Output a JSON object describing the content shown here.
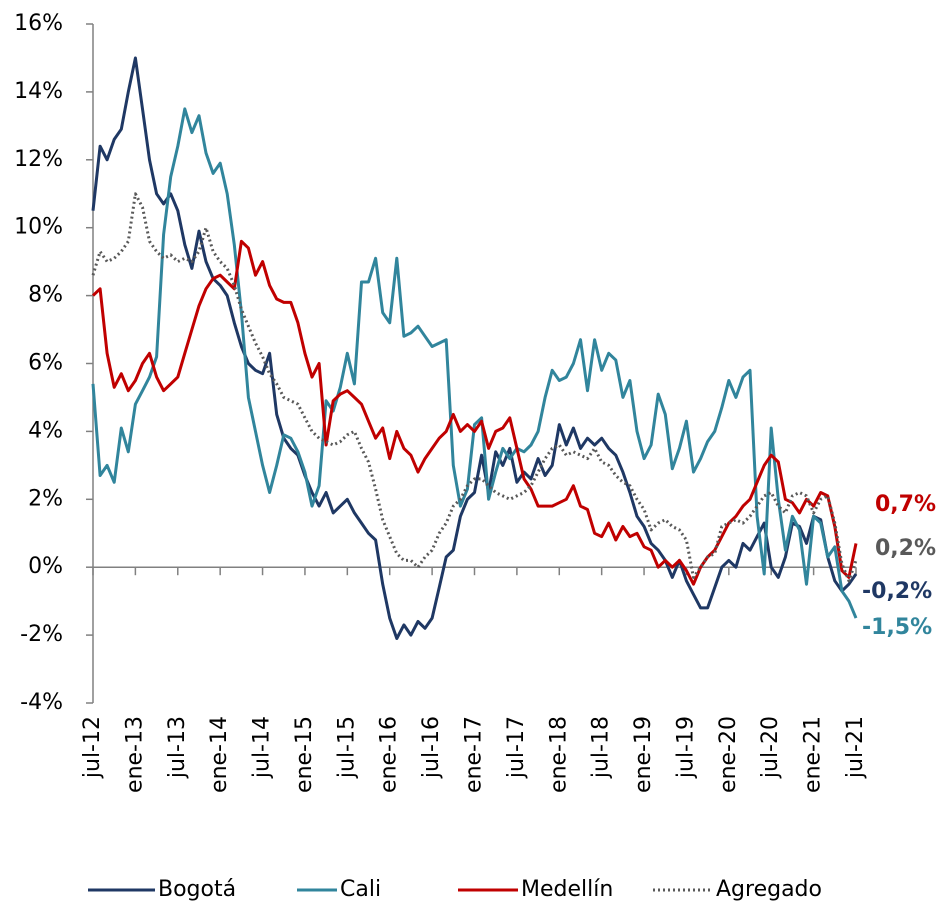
{
  "chart_data": {
    "type": "line",
    "categories": [
      "jul-12",
      null,
      null,
      null,
      null,
      null,
      "ene-13",
      null,
      null,
      null,
      null,
      null,
      "jul-13",
      null,
      null,
      null,
      null,
      null,
      "ene-14",
      null,
      null,
      null,
      null,
      null,
      "jul-14",
      null,
      null,
      null,
      null,
      null,
      "ene-15",
      null,
      null,
      null,
      null,
      null,
      "jul-15",
      null,
      null,
      null,
      null,
      null,
      "ene-16",
      null,
      null,
      null,
      null,
      null,
      "jul-16",
      null,
      null,
      null,
      null,
      null,
      "ene-17",
      null,
      null,
      null,
      null,
      null,
      "jul-17",
      null,
      null,
      null,
      null,
      null,
      "ene-18",
      null,
      null,
      null,
      null,
      null,
      "jul-18",
      null,
      null,
      null,
      null,
      null,
      "ene-19",
      null,
      null,
      null,
      null,
      null,
      "jul-19",
      null,
      null,
      null,
      null,
      null,
      "ene-20",
      null,
      null,
      null,
      null,
      null,
      "jul-20",
      null,
      null,
      null,
      null,
      null,
      "ene-21",
      null,
      null,
      null,
      null,
      null,
      "jul-21"
    ],
    "series": [
      {
        "name": "Bogotá",
        "color": "#1f3864",
        "dash": "solid",
        "values": [
          10.5,
          12.4,
          12.0,
          12.6,
          12.9,
          14.0,
          15.0,
          13.5,
          12.0,
          11.0,
          10.7,
          11.0,
          10.5,
          9.5,
          8.8,
          9.9,
          9.0,
          8.5,
          8.3,
          8.0,
          7.2,
          6.5,
          6.0,
          5.8,
          5.7,
          6.3,
          4.5,
          3.8,
          3.5,
          3.3,
          2.7,
          2.2,
          1.8,
          2.2,
          1.6,
          1.8,
          2.0,
          1.6,
          1.3,
          1.0,
          0.8,
          -0.5,
          -1.5,
          -2.1,
          -1.7,
          -2.0,
          -1.6,
          -1.8,
          -1.5,
          -0.6,
          0.3,
          0.5,
          1.5,
          2.0,
          2.2,
          3.3,
          2.2,
          3.4,
          3.0,
          3.5,
          2.5,
          2.8,
          2.6,
          3.2,
          2.7,
          3.0,
          4.2,
          3.6,
          4.1,
          3.5,
          3.8,
          3.6,
          3.8,
          3.5,
          3.3,
          2.8,
          2.2,
          1.5,
          1.2,
          0.7,
          0.5,
          0.2,
          -0.3,
          0.2,
          -0.4,
          -0.8,
          -1.2,
          -1.2,
          -0.6,
          0.0,
          0.2,
          0.0,
          0.7,
          0.5,
          0.9,
          1.3,
          0.0,
          -0.3,
          0.3,
          1.3,
          1.2,
          0.7,
          1.5,
          1.4,
          0.3,
          -0.4,
          -0.7,
          -0.5,
          -0.2
        ],
        "value_labels": [
          null,
          null,
          null,
          null,
          null,
          null,
          null,
          null,
          null,
          null,
          null,
          null,
          null,
          null,
          null,
          null,
          null,
          null,
          null,
          null,
          null,
          null,
          null,
          null,
          null,
          null,
          null,
          null,
          null,
          null,
          null,
          null,
          null,
          null,
          null,
          null,
          null,
          null,
          null,
          null,
          null,
          null,
          null,
          null,
          null,
          null,
          null,
          null,
          null,
          null,
          null,
          null,
          null,
          null,
          null,
          null,
          null,
          null,
          null,
          null,
          null,
          null,
          null,
          null,
          null,
          null,
          null,
          null,
          null,
          null,
          null,
          null,
          null,
          null,
          null,
          null,
          null,
          null,
          null,
          null,
          null,
          null,
          null,
          null,
          null,
          null,
          null,
          null,
          null,
          null,
          null,
          null,
          null,
          null,
          null,
          null,
          null,
          null,
          null,
          null,
          null,
          null,
          null,
          null,
          null,
          null,
          null,
          null,
          "-0,2%"
        ]
      },
      {
        "name": "Cali",
        "color": "#31859c",
        "dash": "solid",
        "values": [
          5.4,
          2.7,
          3.0,
          2.5,
          4.1,
          3.4,
          4.8,
          5.2,
          5.6,
          6.2,
          9.8,
          11.5,
          12.4,
          13.5,
          12.8,
          13.3,
          12.2,
          11.6,
          11.9,
          11.0,
          9.5,
          7.5,
          5.0,
          4.0,
          3.0,
          2.2,
          3.0,
          3.9,
          3.8,
          3.4,
          2.8,
          1.8,
          2.4,
          4.9,
          4.6,
          5.3,
          6.3,
          5.4,
          8.4,
          8.4,
          9.1,
          7.5,
          7.2,
          9.1,
          6.8,
          6.9,
          7.1,
          6.8,
          6.5,
          6.6,
          6.7,
          3.0,
          1.8,
          2.3,
          4.2,
          4.4,
          2.0,
          2.8,
          3.5,
          3.2,
          3.5,
          3.4,
          3.6,
          4.0,
          5.0,
          5.8,
          5.5,
          5.6,
          6.0,
          6.7,
          5.2,
          6.7,
          5.8,
          6.3,
          6.1,
          5.0,
          5.5,
          4.0,
          3.2,
          3.6,
          5.1,
          4.5,
          2.9,
          3.5,
          4.3,
          2.8,
          3.2,
          3.7,
          4.0,
          4.7,
          5.5,
          5.0,
          5.6,
          5.8,
          1.5,
          -0.2,
          4.1,
          2.0,
          0.5,
          1.5,
          1.1,
          -0.5,
          1.5,
          1.3,
          0.3,
          0.6,
          -0.7,
          -1.0,
          -1.5
        ],
        "value_labels": [
          null,
          null,
          null,
          null,
          null,
          null,
          null,
          null,
          null,
          null,
          null,
          null,
          null,
          null,
          null,
          null,
          null,
          null,
          null,
          null,
          null,
          null,
          null,
          null,
          null,
          null,
          null,
          null,
          null,
          null,
          null,
          null,
          null,
          null,
          null,
          null,
          null,
          null,
          null,
          null,
          null,
          null,
          null,
          null,
          null,
          null,
          null,
          null,
          null,
          null,
          null,
          null,
          null,
          null,
          null,
          null,
          null,
          null,
          null,
          null,
          null,
          null,
          null,
          null,
          null,
          null,
          null,
          null,
          null,
          null,
          null,
          null,
          null,
          null,
          null,
          null,
          null,
          null,
          null,
          null,
          null,
          null,
          null,
          null,
          null,
          null,
          null,
          null,
          null,
          null,
          null,
          null,
          null,
          null,
          null,
          null,
          null,
          null,
          null,
          null,
          null,
          null,
          null,
          null,
          null,
          null,
          null,
          null,
          "-1,5%"
        ]
      },
      {
        "name": "Medellín",
        "color": "#c00000",
        "dash": "solid",
        "values": [
          8.0,
          8.2,
          6.3,
          5.3,
          5.7,
          5.2,
          5.5,
          6.0,
          6.3,
          5.6,
          5.2,
          5.4,
          5.6,
          6.3,
          7.0,
          7.7,
          8.2,
          8.5,
          8.6,
          8.4,
          8.2,
          9.6,
          9.4,
          8.6,
          9.0,
          8.3,
          7.9,
          7.8,
          7.8,
          7.2,
          6.3,
          5.6,
          6.0,
          3.6,
          4.9,
          5.1,
          5.2,
          5.0,
          4.8,
          4.3,
          3.8,
          4.1,
          3.2,
          4.0,
          3.5,
          3.3,
          2.8,
          3.2,
          3.5,
          3.8,
          4.0,
          4.5,
          4.0,
          4.2,
          4.0,
          4.3,
          3.5,
          4.0,
          4.1,
          4.4,
          3.5,
          2.6,
          2.3,
          1.8,
          1.8,
          1.8,
          1.9,
          2.0,
          2.4,
          1.8,
          1.7,
          1.0,
          0.9,
          1.3,
          0.8,
          1.2,
          0.9,
          1.0,
          0.6,
          0.5,
          0.0,
          0.2,
          0.0,
          0.2,
          -0.1,
          -0.5,
          0.0,
          0.3,
          0.5,
          0.9,
          1.3,
          1.5,
          1.8,
          2.0,
          2.5,
          3.0,
          3.3,
          3.1,
          2.0,
          1.9,
          1.6,
          2.0,
          1.8,
          2.2,
          2.1,
          1.2,
          -0.1,
          -0.3,
          0.7
        ],
        "value_labels": [
          null,
          null,
          null,
          null,
          null,
          null,
          null,
          null,
          null,
          null,
          null,
          null,
          null,
          null,
          null,
          null,
          null,
          null,
          null,
          null,
          null,
          null,
          null,
          null,
          null,
          null,
          null,
          null,
          null,
          null,
          null,
          null,
          null,
          null,
          null,
          null,
          null,
          null,
          null,
          null,
          null,
          null,
          null,
          null,
          null,
          null,
          null,
          null,
          null,
          null,
          null,
          null,
          null,
          null,
          null,
          null,
          null,
          null,
          null,
          null,
          null,
          null,
          null,
          null,
          null,
          null,
          null,
          null,
          null,
          null,
          null,
          null,
          null,
          null,
          null,
          null,
          null,
          null,
          null,
          null,
          null,
          null,
          null,
          null,
          null,
          null,
          null,
          null,
          null,
          null,
          null,
          null,
          null,
          null,
          null,
          null,
          null,
          null,
          null,
          null,
          null,
          null,
          null,
          null,
          null,
          null,
          null,
          null,
          "0,7%"
        ]
      },
      {
        "name": "Agregado",
        "color": "#595959",
        "dash": "dotted",
        "values": [
          8.6,
          9.3,
          9.0,
          9.1,
          9.3,
          9.6,
          11.0,
          10.6,
          9.6,
          9.3,
          9.1,
          9.2,
          9.0,
          9.1,
          9.0,
          9.3,
          10.0,
          9.3,
          9.0,
          8.8,
          8.3,
          7.6,
          7.1,
          6.6,
          6.2,
          5.7,
          5.4,
          5.0,
          4.9,
          4.8,
          4.4,
          4.0,
          3.8,
          3.7,
          3.6,
          3.7,
          3.9,
          4.0,
          3.5,
          3.1,
          2.3,
          1.4,
          0.9,
          0.4,
          0.2,
          0.2,
          0.0,
          0.3,
          0.5,
          1.0,
          1.3,
          1.8,
          2.0,
          2.4,
          2.6,
          2.6,
          2.4,
          2.2,
          2.1,
          2.0,
          2.1,
          2.2,
          2.4,
          2.8,
          3.2,
          3.5,
          3.6,
          3.3,
          3.4,
          3.3,
          3.2,
          3.5,
          3.1,
          3.0,
          2.7,
          2.5,
          2.4,
          2.0,
          1.7,
          1.1,
          1.3,
          1.4,
          1.2,
          1.1,
          0.8,
          -0.3,
          0.0,
          0.3,
          0.4,
          1.2,
          1.3,
          1.4,
          1.3,
          1.5,
          1.8,
          2.1,
          2.2,
          1.8,
          1.6,
          2.1,
          2.2,
          2.1,
          1.6,
          2.0,
          2.1,
          1.3,
          0.1,
          -0.4,
          0.2
        ],
        "value_labels": [
          null,
          null,
          null,
          null,
          null,
          null,
          null,
          null,
          null,
          null,
          null,
          null,
          null,
          null,
          null,
          null,
          null,
          null,
          null,
          null,
          null,
          null,
          null,
          null,
          null,
          null,
          null,
          null,
          null,
          null,
          null,
          null,
          null,
          null,
          null,
          null,
          null,
          null,
          null,
          null,
          null,
          null,
          null,
          null,
          null,
          null,
          null,
          null,
          null,
          null,
          null,
          null,
          null,
          null,
          null,
          null,
          null,
          null,
          null,
          null,
          null,
          null,
          null,
          null,
          null,
          null,
          null,
          null,
          null,
          null,
          null,
          null,
          null,
          null,
          null,
          null,
          null,
          null,
          null,
          null,
          null,
          null,
          null,
          null,
          null,
          null,
          null,
          null,
          null,
          null,
          null,
          null,
          null,
          null,
          null,
          null,
          null,
          null,
          null,
          null,
          null,
          null,
          null,
          null,
          null,
          null,
          null,
          null,
          "0,2%"
        ]
      }
    ],
    "ylim": [
      -4,
      16
    ],
    "yticks": [
      {
        "value": -4,
        "label": "-4%"
      },
      {
        "value": -2,
        "label": "-2%"
      },
      {
        "value": 0,
        "label": "0%"
      },
      {
        "value": 2,
        "label": "2%"
      },
      {
        "value": 4,
        "label": "4%"
      },
      {
        "value": 6,
        "label": "6%"
      },
      {
        "value": 8,
        "label": "8%"
      },
      {
        "value": 10,
        "label": "10%"
      },
      {
        "value": 12,
        "label": "12%"
      },
      {
        "value": 14,
        "label": "14%"
      },
      {
        "value": 16,
        "label": "16%"
      }
    ],
    "grid": false,
    "legend": "bottom"
  }
}
